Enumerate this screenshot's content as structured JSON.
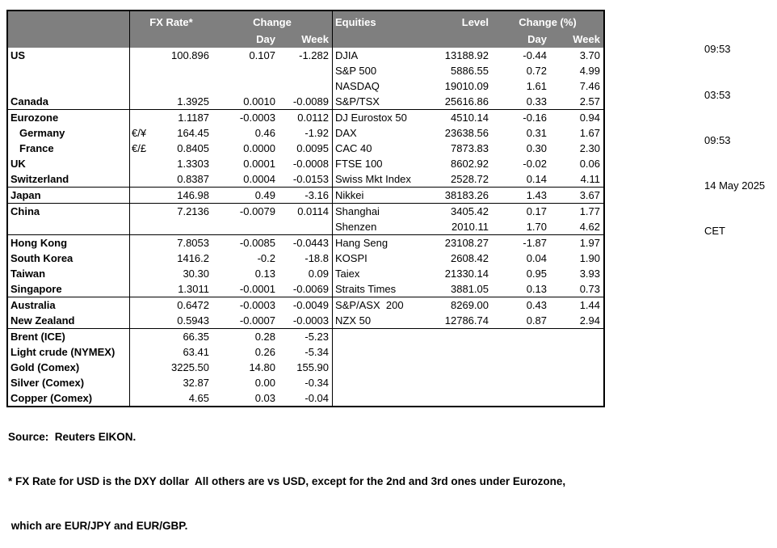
{
  "header": {
    "fx": {
      "rate": "FX Rate*",
      "change": "Change",
      "day": "Day",
      "week": "Week"
    },
    "equities": {
      "name": "Equities",
      "level": "Level",
      "change_pct": "Change (%)",
      "day": "Day",
      "week": "Week"
    }
  },
  "rows": [
    {
      "label": "US",
      "pair": "",
      "fx_rate": "100.896",
      "fx_day": "0.107",
      "fx_week": "-1.282",
      "equity": "DJIA",
      "level": "13188.92",
      "eq_day": "-0.44",
      "eq_week": "3.70",
      "sep": false,
      "indent": false
    },
    {
      "label": "",
      "pair": "",
      "fx_rate": "",
      "fx_day": "",
      "fx_week": "",
      "equity": "S&P 500",
      "level": "5886.55",
      "eq_day": "0.72",
      "eq_week": "4.99",
      "sep": false,
      "indent": false
    },
    {
      "label": "",
      "pair": "",
      "fx_rate": "",
      "fx_day": "",
      "fx_week": "",
      "equity": "NASDAQ",
      "level": "19010.09",
      "eq_day": "1.61",
      "eq_week": "7.46",
      "sep": false,
      "indent": false
    },
    {
      "label": "Canada",
      "pair": "",
      "fx_rate": "1.3925",
      "fx_day": "0.0010",
      "fx_week": "-0.0089",
      "equity": "S&P/TSX",
      "level": "25616.86",
      "eq_day": "0.33",
      "eq_week": "2.57",
      "sep": false,
      "indent": false
    },
    {
      "label": "Eurozone",
      "pair": "",
      "fx_rate": "1.1187",
      "fx_day": "-0.0003",
      "fx_week": "0.0112",
      "equity": "DJ Eurostox 50",
      "level": "4510.14",
      "eq_day": "-0.16",
      "eq_week": "0.94",
      "sep": true,
      "indent": false
    },
    {
      "label": "Germany",
      "pair": "€/¥",
      "fx_rate": "164.45",
      "fx_day": "0.46",
      "fx_week": "-1.92",
      "equity": "DAX",
      "level": "23638.56",
      "eq_day": "0.31",
      "eq_week": "1.67",
      "sep": false,
      "indent": true
    },
    {
      "label": "France",
      "pair": "€/£",
      "fx_rate": "0.8405",
      "fx_day": "0.0000",
      "fx_week": "0.0095",
      "equity": "CAC 40",
      "level": "7873.83",
      "eq_day": "0.30",
      "eq_week": "2.30",
      "sep": false,
      "indent": true
    },
    {
      "label": "UK",
      "pair": "",
      "fx_rate": "1.3303",
      "fx_day": "0.0001",
      "fx_week": "-0.0008",
      "equity": "FTSE 100",
      "level": "8602.92",
      "eq_day": "-0.02",
      "eq_week": "0.06",
      "sep": false,
      "indent": false
    },
    {
      "label": "Switzerland",
      "pair": "",
      "fx_rate": "0.8387",
      "fx_day": "0.0004",
      "fx_week": "-0.0153",
      "equity": "Swiss Mkt Index",
      "level": "2528.72",
      "eq_day": "0.14",
      "eq_week": "4.11",
      "sep": false,
      "indent": false
    },
    {
      "label": "Japan",
      "pair": "",
      "fx_rate": "146.98",
      "fx_day": "0.49",
      "fx_week": "-3.16",
      "equity": "Nikkei",
      "level": "38183.26",
      "eq_day": "1.43",
      "eq_week": "3.67",
      "sep": true,
      "indent": false
    },
    {
      "label": "China",
      "pair": "",
      "fx_rate": "7.2136",
      "fx_day": "-0.0079",
      "fx_week": "0.0114",
      "equity": "Shanghai",
      "level": "3405.42",
      "eq_day": "0.17",
      "eq_week": "1.77",
      "sep": true,
      "indent": false
    },
    {
      "label": "",
      "pair": "",
      "fx_rate": "",
      "fx_day": "",
      "fx_week": "",
      "equity": "Shenzen",
      "level": "2010.11",
      "eq_day": "1.70",
      "eq_week": "4.62",
      "sep": false,
      "indent": false
    },
    {
      "label": "Hong Kong",
      "pair": "",
      "fx_rate": "7.8053",
      "fx_day": "-0.0085",
      "fx_week": "-0.0443",
      "equity": "Hang Seng",
      "level": "23108.27",
      "eq_day": "-1.87",
      "eq_week": "1.97",
      "sep": true,
      "indent": false
    },
    {
      "label": "South Korea",
      "pair": "",
      "fx_rate": "1416.2",
      "fx_day": "-0.2",
      "fx_week": "-18.8",
      "equity": "KOSPI",
      "level": "2608.42",
      "eq_day": "0.04",
      "eq_week": "1.90",
      "sep": false,
      "indent": false
    },
    {
      "label": "Taiwan",
      "pair": "",
      "fx_rate": "30.30",
      "fx_day": "0.13",
      "fx_week": "0.09",
      "equity": "Taiex",
      "level": "21330.14",
      "eq_day": "0.95",
      "eq_week": "3.93",
      "sep": false,
      "indent": false
    },
    {
      "label": "Singapore",
      "pair": "",
      "fx_rate": "1.3011",
      "fx_day": "-0.0001",
      "fx_week": "-0.0069",
      "equity": "Straits Times",
      "level": "3881.05",
      "eq_day": "0.13",
      "eq_week": "0.73",
      "sep": false,
      "indent": false
    },
    {
      "label": "Australia",
      "pair": "",
      "fx_rate": "0.6472",
      "fx_day": "-0.0003",
      "fx_week": "-0.0049",
      "equity": "S&P/ASX  200",
      "level": "8269.00",
      "eq_day": "0.43",
      "eq_week": "1.44",
      "sep": true,
      "indent": false
    },
    {
      "label": "New Zealand",
      "pair": "",
      "fx_rate": "0.5943",
      "fx_day": "-0.0007",
      "fx_week": "-0.0003",
      "equity": "NZX 50",
      "level": "12786.74",
      "eq_day": "0.87",
      "eq_week": "2.94",
      "sep": false,
      "indent": false
    },
    {
      "label": "Brent (ICE)",
      "pair": "",
      "fx_rate": "66.35",
      "fx_day": "0.28",
      "fx_week": "-5.23",
      "equity": "",
      "level": "",
      "eq_day": "",
      "eq_week": "",
      "sep": true,
      "indent": false
    },
    {
      "label": "Light crude (NYMEX)",
      "pair": "",
      "fx_rate": "63.41",
      "fx_day": "0.26",
      "fx_week": "-5.34",
      "equity": "",
      "level": "",
      "eq_day": "",
      "eq_week": "",
      "sep": false,
      "indent": false
    },
    {
      "label": "Gold (Comex)",
      "pair": "",
      "fx_rate": "3225.50",
      "fx_day": "14.80",
      "fx_week": "155.90",
      "equity": "",
      "level": "",
      "eq_day": "",
      "eq_week": "",
      "sep": false,
      "indent": false
    },
    {
      "label": "Silver (Comex)",
      "pair": "",
      "fx_rate": "32.87",
      "fx_day": "0.00",
      "fx_week": "-0.34",
      "equity": "",
      "level": "",
      "eq_day": "",
      "eq_week": "",
      "sep": false,
      "indent": false
    },
    {
      "label": "Copper (Comex)",
      "pair": "",
      "fx_rate": "4.65",
      "fx_day": "0.03",
      "fx_week": "-0.04",
      "equity": "",
      "level": "",
      "eq_day": "",
      "eq_week": "",
      "sep": false,
      "indent": false
    }
  ],
  "timestamps": [
    "09:53",
    "03:53",
    "09:53",
    "14 May 2025",
    "CET"
  ],
  "footer": {
    "source": "Source:  Reuters EIKON.",
    "note1": "* FX Rate for USD is the DXY dollar  All others are vs USD, except for the 2nd and 3rd ones under Eurozone,",
    "note2": " which are EUR/JPY and EUR/GBP."
  },
  "colors": {
    "header_bg": "#7f7f7f",
    "header_text": "#ffffff",
    "border": "#000000",
    "text": "#000000",
    "page_bg": "#ffffff"
  }
}
